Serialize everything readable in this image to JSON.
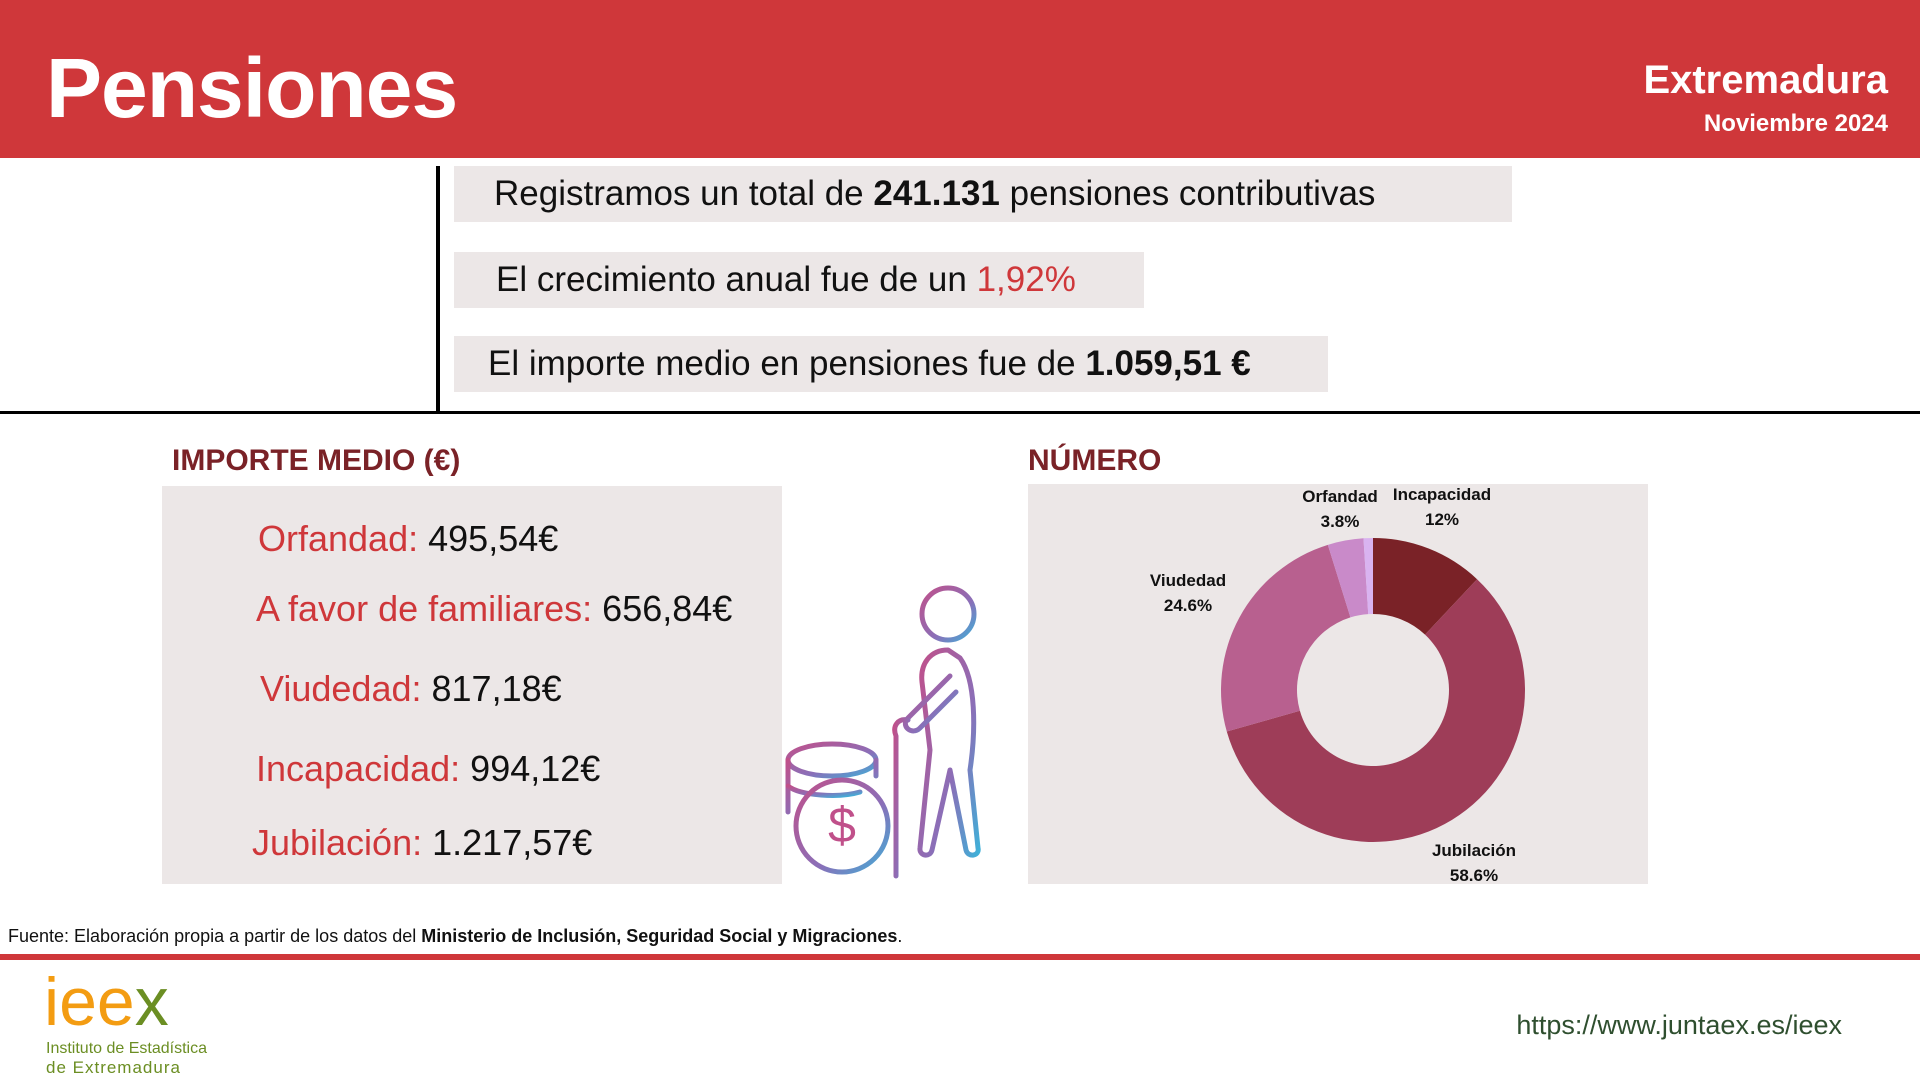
{
  "header": {
    "title": "Pensiones",
    "region": "Extremadura",
    "date": "Noviembre 2024",
    "color": "#cf373a"
  },
  "kpis": {
    "total_prefix": "Registramos un total de ",
    "total_value": "241.131",
    "total_suffix": " pensiones contributivas",
    "growth_prefix": "El crecimiento anual fue de un ",
    "growth_value": "1,92%",
    "average_prefix": "El importe medio en pensiones fue de ",
    "average_value": "1.059,51 €"
  },
  "amounts": {
    "title": "IMPORTE MEDIO (€)",
    "items": [
      {
        "label": "Orfandad:",
        "value": "495,54€"
      },
      {
        "label": "A favor de familiares:",
        "value": "656,84€"
      },
      {
        "label": "Viudedad:",
        "value": "817,18€"
      },
      {
        "label": "Incapacidad:",
        "value": "994,12€"
      },
      {
        "label": "Jubilación:",
        "value": "1.217,57€"
      }
    ]
  },
  "chart_title": "NÚMERO",
  "chart_data": {
    "type": "pie",
    "donut": true,
    "slices": [
      {
        "name": "Incapacidad",
        "value": 12,
        "label": "12%",
        "color": "#7a2227"
      },
      {
        "name": "Jubilación",
        "value": 58.6,
        "label": "58.6%",
        "color": "#9e3d58"
      },
      {
        "name": "Viudedad",
        "value": 24.6,
        "label": "24.6%",
        "color": "#b8608f"
      },
      {
        "name": "Orfandad",
        "value": 3.8,
        "label": "3.8%",
        "color": "#c98ac9"
      },
      {
        "name": "",
        "value": 1.0,
        "label": "",
        "color": "#d9b3f0"
      }
    ]
  },
  "footer": {
    "source_prefix": "Fuente: Elaboración propia a partir de los datos del ",
    "source_bold": "Ministerio de Inclusión, Seguridad Social y Migraciones",
    "source_suffix": ".",
    "logo_i": "i",
    "logo_ee": "ee",
    "logo_x": "x",
    "logo_line1": "Instituto de Estadística",
    "logo_line2": "de Extremadura",
    "url": "https://www.juntaex.es/ieex"
  }
}
